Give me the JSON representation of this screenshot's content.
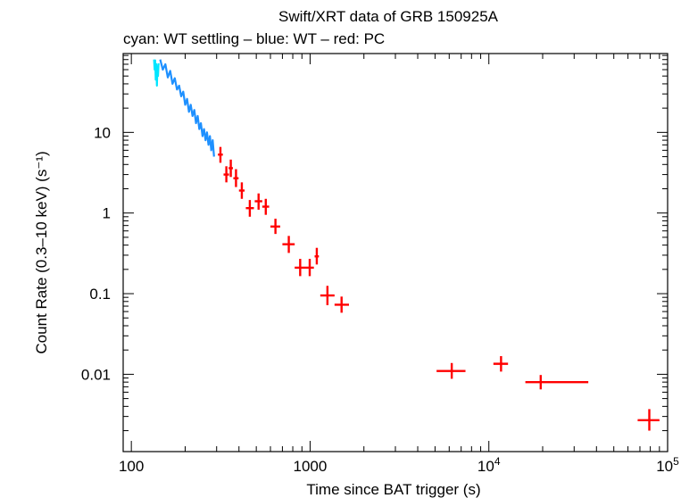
{
  "chart_data": {
    "type": "scatter",
    "title": "Swift/XRT data of GRB 150925A",
    "subtitle": "cyan: WT settling – blue: WT – red: PC",
    "xlabel": "Time since BAT trigger (s)",
    "ylabel": "Count Rate (0.3–10 keV) (s⁻¹)",
    "xscale": "log",
    "yscale": "log",
    "xlim": [
      90,
      100000
    ],
    "ylim": [
      0.0011,
      95
    ],
    "x_tick_labels": [
      {
        "value": 100,
        "label": "100"
      },
      {
        "value": 1000,
        "label": "1000"
      },
      {
        "value": 10000,
        "base": "10",
        "exp": "4"
      },
      {
        "value": 100000,
        "base": "10",
        "exp": "5"
      }
    ],
    "y_tick_labels": [
      {
        "value": 10,
        "label": "10"
      },
      {
        "value": 1,
        "label": "1"
      },
      {
        "value": 0.1,
        "label": "0.1"
      },
      {
        "value": 0.01,
        "label": "0.01"
      }
    ],
    "series": [
      {
        "name": "WT settling",
        "color": "#00e5ff",
        "style": "noisy-line",
        "points": [
          [
            134,
            80
          ],
          [
            135,
            60
          ],
          [
            136,
            78
          ],
          [
            137,
            45
          ],
          [
            138,
            70
          ],
          [
            139,
            38
          ],
          [
            140,
            65
          ],
          [
            141,
            50
          ],
          [
            142,
            72
          ]
        ]
      },
      {
        "name": "WT",
        "color": "#1e90ff",
        "style": "noisy-line",
        "points": [
          [
            145,
            80
          ],
          [
            150,
            60
          ],
          [
            155,
            70
          ],
          [
            160,
            48
          ],
          [
            165,
            58
          ],
          [
            170,
            40
          ],
          [
            175,
            47
          ],
          [
            180,
            34
          ],
          [
            185,
            38
          ],
          [
            190,
            28
          ],
          [
            195,
            32
          ],
          [
            200,
            22
          ],
          [
            205,
            26
          ],
          [
            210,
            18
          ],
          [
            215,
            22
          ],
          [
            220,
            16
          ],
          [
            225,
            19
          ],
          [
            230,
            13
          ],
          [
            235,
            16
          ],
          [
            240,
            11
          ],
          [
            245,
            13
          ],
          [
            250,
            9
          ],
          [
            255,
            11
          ],
          [
            260,
            8
          ],
          [
            265,
            10
          ],
          [
            270,
            7
          ],
          [
            275,
            9
          ],
          [
            280,
            6
          ],
          [
            285,
            8
          ],
          [
            290,
            5
          ]
        ]
      },
      {
        "name": "PC",
        "color": "#ff0000",
        "style": "error-cross",
        "points": [
          {
            "x": 315,
            "y": 5.3,
            "xlo": 305,
            "xhi": 325,
            "ylo": 4.2,
            "yhi": 6.6
          },
          {
            "x": 340,
            "y": 3.0,
            "xlo": 328,
            "xhi": 352,
            "ylo": 2.4,
            "yhi": 3.8
          },
          {
            "x": 360,
            "y": 3.6,
            "xlo": 350,
            "xhi": 370,
            "ylo": 2.8,
            "yhi": 4.6
          },
          {
            "x": 385,
            "y": 2.7,
            "xlo": 372,
            "xhi": 398,
            "ylo": 2.1,
            "yhi": 3.5
          },
          {
            "x": 415,
            "y": 1.9,
            "xlo": 400,
            "xhi": 430,
            "ylo": 1.5,
            "yhi": 2.4
          },
          {
            "x": 460,
            "y": 1.15,
            "xlo": 437,
            "xhi": 485,
            "ylo": 0.9,
            "yhi": 1.45
          },
          {
            "x": 515,
            "y": 1.4,
            "xlo": 490,
            "xhi": 540,
            "ylo": 1.1,
            "yhi": 1.75
          },
          {
            "x": 565,
            "y": 1.2,
            "xlo": 540,
            "xhi": 590,
            "ylo": 0.95,
            "yhi": 1.5
          },
          {
            "x": 640,
            "y": 0.68,
            "xlo": 600,
            "xhi": 680,
            "ylo": 0.55,
            "yhi": 0.85
          },
          {
            "x": 760,
            "y": 0.41,
            "xlo": 700,
            "xhi": 820,
            "ylo": 0.32,
            "yhi": 0.52
          },
          {
            "x": 880,
            "y": 0.21,
            "xlo": 820,
            "xhi": 945,
            "ylo": 0.165,
            "yhi": 0.27
          },
          {
            "x": 995,
            "y": 0.21,
            "xlo": 945,
            "xhi": 1050,
            "ylo": 0.165,
            "yhi": 0.27
          },
          {
            "x": 1090,
            "y": 0.29,
            "xlo": 1060,
            "xhi": 1120,
            "ylo": 0.23,
            "yhi": 0.37
          },
          {
            "x": 1250,
            "y": 0.095,
            "xlo": 1140,
            "xhi": 1370,
            "ylo": 0.072,
            "yhi": 0.125
          },
          {
            "x": 1500,
            "y": 0.073,
            "xlo": 1370,
            "xhi": 1650,
            "ylo": 0.058,
            "yhi": 0.092
          },
          {
            "x": 6200,
            "y": 0.011,
            "xlo": 5100,
            "xhi": 7400,
            "ylo": 0.0088,
            "yhi": 0.0138
          },
          {
            "x": 11700,
            "y": 0.0135,
            "xlo": 10600,
            "xhi": 12800,
            "ylo": 0.0108,
            "yhi": 0.0168
          },
          {
            "x": 19500,
            "y": 0.008,
            "xlo": 16000,
            "xhi": 36000,
            "ylo": 0.0065,
            "yhi": 0.0098
          },
          {
            "x": 79000,
            "y": 0.0027,
            "xlo": 68000,
            "xhi": 90000,
            "ylo": 0.002,
            "yhi": 0.0037
          }
        ]
      }
    ]
  }
}
